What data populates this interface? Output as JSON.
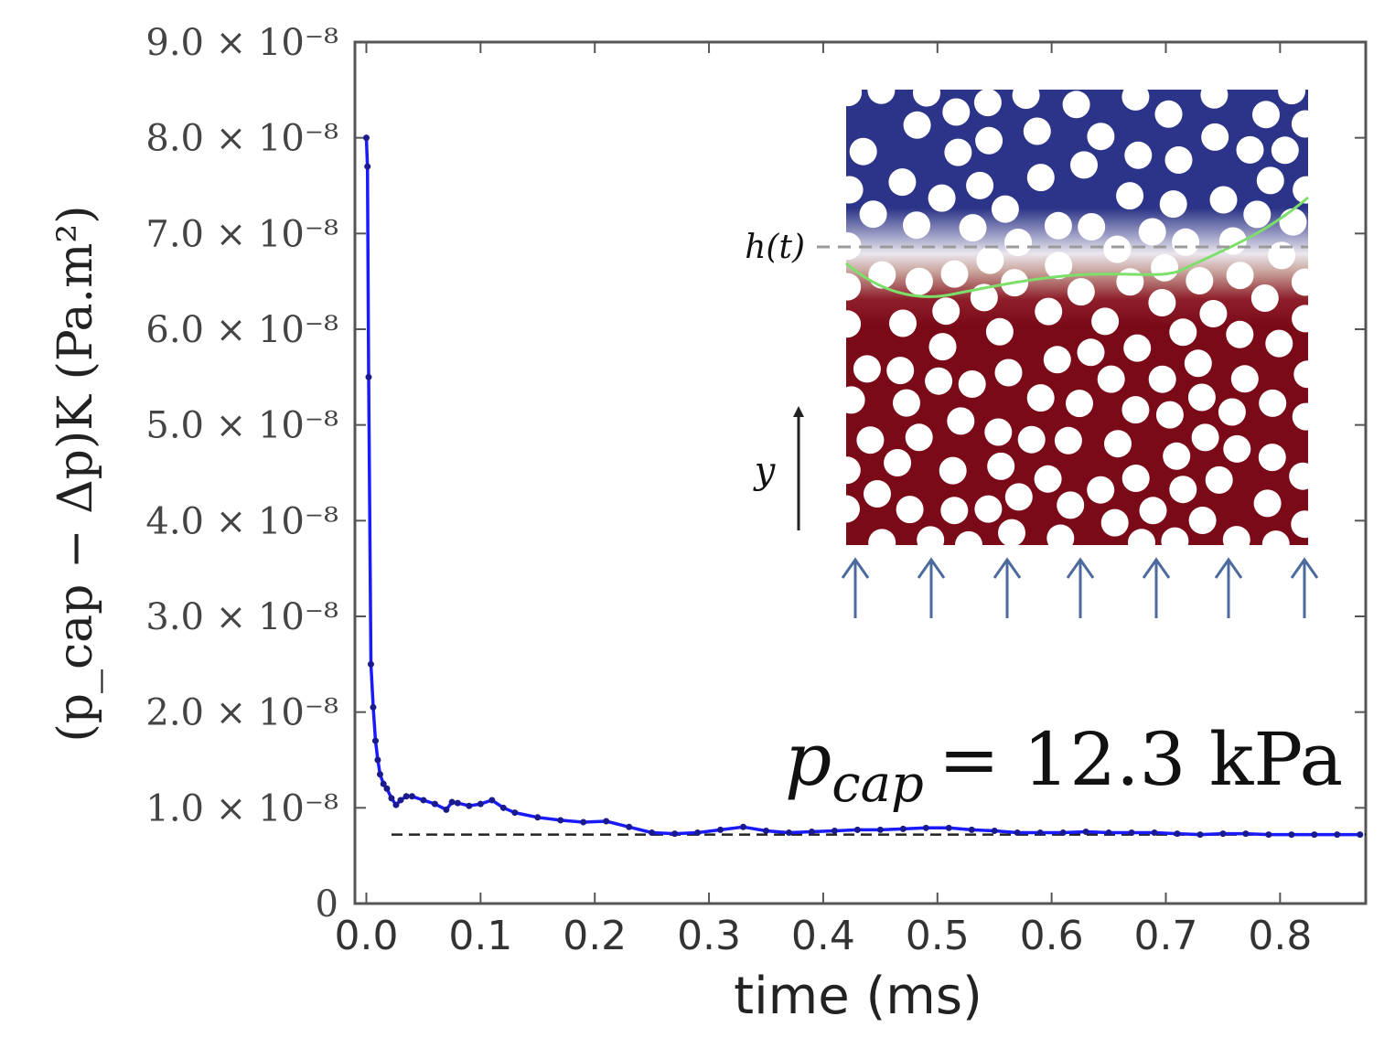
{
  "chart_data": {
    "type": "line",
    "xlabel": "time (ms)",
    "ylabel": "(p_cap − Δp)K  (Pa.m²)",
    "xlim": [
      -0.01,
      0.875
    ],
    "ylim": [
      0,
      9e-08
    ],
    "x_ticks": [
      "0.0",
      "0.1",
      "0.2",
      "0.3",
      "0.4",
      "0.5",
      "0.6",
      "0.7",
      "0.8"
    ],
    "x_tick_values": [
      0,
      0.1,
      0.2,
      0.3,
      0.4,
      0.5,
      0.6,
      0.7,
      0.8
    ],
    "y_ticks": [
      "0",
      "1.0 × 10⁻⁸",
      "2.0 × 10⁻⁸",
      "3.0 × 10⁻⁸",
      "4.0 × 10⁻⁸",
      "5.0 × 10⁻⁸",
      "6.0 × 10⁻⁸",
      "7.0 × 10⁻⁸",
      "8.0 × 10⁻⁸",
      "9.0 × 10⁻⁸"
    ],
    "y_tick_values": [
      0,
      1e-08,
      2e-08,
      3e-08,
      4e-08,
      5e-08,
      6e-08,
      7e-08,
      8e-08,
      9e-08
    ],
    "series": [
      {
        "color": "#1a1aff",
        "marker_color": "#1a1a8c",
        "x": [
          0.0,
          0.001,
          0.002,
          0.004,
          0.006,
          0.008,
          0.01,
          0.012,
          0.015,
          0.018,
          0.022,
          0.026,
          0.03,
          0.035,
          0.04,
          0.05,
          0.06,
          0.07,
          0.075,
          0.08,
          0.09,
          0.1,
          0.11,
          0.12,
          0.13,
          0.15,
          0.17,
          0.19,
          0.21,
          0.23,
          0.25,
          0.27,
          0.29,
          0.31,
          0.33,
          0.35,
          0.37,
          0.39,
          0.41,
          0.43,
          0.45,
          0.47,
          0.49,
          0.51,
          0.53,
          0.55,
          0.57,
          0.59,
          0.61,
          0.63,
          0.65,
          0.67,
          0.69,
          0.71,
          0.73,
          0.75,
          0.77,
          0.79,
          0.81,
          0.83,
          0.85,
          0.87
        ],
        "y": [
          8e-08,
          7.7e-08,
          5.5e-08,
          2.5e-08,
          2.05e-08,
          1.7e-08,
          1.5e-08,
          1.35e-08,
          1.25e-08,
          1.2e-08,
          1.1e-08,
          1.03e-08,
          1.08e-08,
          1.12e-08,
          1.12e-08,
          1.08e-08,
          1.04e-08,
          9.8e-09,
          1.06e-08,
          1.05e-08,
          1.02e-08,
          1.04e-08,
          1.08e-08,
          1e-08,
          9.5e-09,
          9e-09,
          8.7e-09,
          8.5e-09,
          8.6e-09,
          8e-09,
          7.4e-09,
          7.3e-09,
          7.4e-09,
          7.7e-09,
          8e-09,
          7.6e-09,
          7.4e-09,
          7.5e-09,
          7.6e-09,
          7.7e-09,
          7.7e-09,
          7.8e-09,
          7.9e-09,
          7.9e-09,
          7.7e-09,
          7.6e-09,
          7.4e-09,
          7.4e-09,
          7.4e-09,
          7.5e-09,
          7.4e-09,
          7.4e-09,
          7.4e-09,
          7.3e-09,
          7.2e-09,
          7.3e-09,
          7.3e-09,
          7.2e-09,
          7.2e-09,
          7.2e-09,
          7.2e-09,
          7.2e-09
        ]
      }
    ],
    "reference_line": {
      "y": 7.2e-09,
      "style": "dashed",
      "color": "#222222"
    },
    "grid": false
  },
  "annotation": {
    "var": "p",
    "sub": "cap",
    "rhs": "= 12.3 kPa"
  },
  "inset": {
    "h_label": "h(t)",
    "y_label": "y",
    "colors": {
      "blue": "#2b3488",
      "red": "#7a0a18",
      "interface": "#7cdf6a",
      "dash": "#9a9a9a",
      "arrows": "#4d6a9e"
    }
  }
}
